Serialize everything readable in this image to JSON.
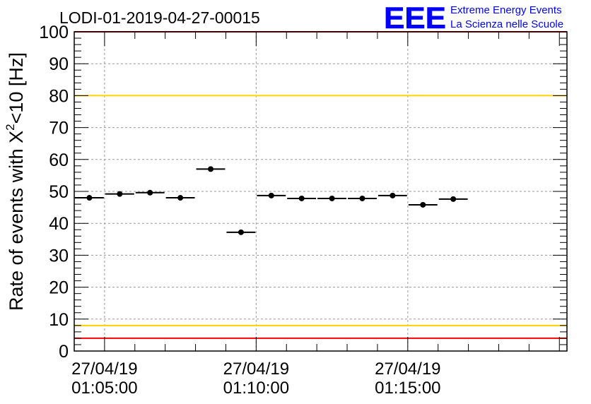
{
  "chart_data": {
    "type": "scatter",
    "title": "LODI-01-2019-04-27-00015",
    "ylabel_main": "Rate of events with X",
    "ylabel_sup": "2",
    "ylabel_tail": "<10 [Hz]",
    "ylim": [
      0,
      100
    ],
    "yticks": [
      "0",
      "10",
      "20",
      "30",
      "40",
      "50",
      "60",
      "70",
      "80",
      "90",
      "100"
    ],
    "xlim": [
      "01:04:00",
      "01:20:15"
    ],
    "xticks": [
      {
        "t": "01:05:00",
        "date": "27/04/19",
        "time": "01:05:00"
      },
      {
        "t": "01:10:00",
        "date": "27/04/19",
        "time": "01:10:00"
      },
      {
        "t": "01:15:00",
        "date": "27/04/19",
        "time": "01:15:00"
      }
    ],
    "grid": true,
    "reference_lines": [
      {
        "y": 100,
        "color": "#ff0000"
      },
      {
        "y": 80,
        "color": "#ffd200"
      },
      {
        "y": 8,
        "color": "#ffd200"
      },
      {
        "y": 4,
        "color": "#ff0000"
      }
    ],
    "points": [
      {
        "x_start": "01:04:00",
        "x_end": "01:05:00",
        "y": 48.0
      },
      {
        "x_start": "01:05:00",
        "x_end": "01:06:00",
        "y": 49.2
      },
      {
        "x_start": "01:06:00",
        "x_end": "01:07:00",
        "y": 49.6
      },
      {
        "x_start": "01:07:00",
        "x_end": "01:08:00",
        "y": 48.0
      },
      {
        "x_start": "01:08:00",
        "x_end": "01:09:00",
        "y": 57.0
      },
      {
        "x_start": "01:09:00",
        "x_end": "01:10:00",
        "y": 37.2
      },
      {
        "x_start": "01:10:00",
        "x_end": "01:11:00",
        "y": 48.7
      },
      {
        "x_start": "01:11:00",
        "x_end": "01:12:00",
        "y": 47.8
      },
      {
        "x_start": "01:12:00",
        "x_end": "01:13:00",
        "y": 47.8
      },
      {
        "x_start": "01:13:00",
        "x_end": "01:14:00",
        "y": 47.8
      },
      {
        "x_start": "01:14:00",
        "x_end": "01:15:00",
        "y": 48.7
      },
      {
        "x_start": "01:15:00",
        "x_end": "01:16:00",
        "y": 45.8
      },
      {
        "x_start": "01:16:00",
        "x_end": "01:17:00",
        "y": 47.6
      }
    ],
    "colors": {
      "marker": "#000000",
      "grid": "#9a9a9a",
      "frame": "#000000"
    }
  },
  "logo": {
    "mark": "EEE",
    "line1": "Extreme Energy Events",
    "line2": "La Scienza nelle Scuole",
    "color": "#0000ff"
  }
}
